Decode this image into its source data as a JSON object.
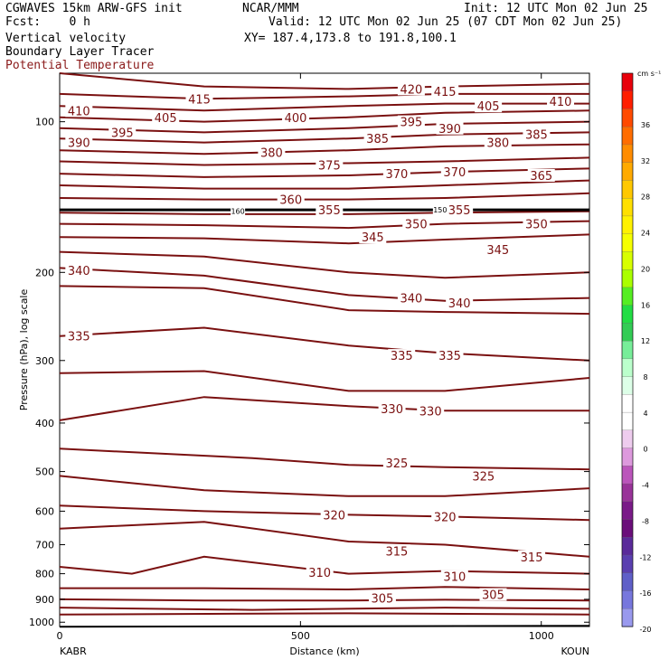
{
  "header": {
    "model": "CGWAVES 15km ARW-GFS init",
    "org": "NCAR/MMM",
    "init": "Init: 12 UTC Mon 02 Jun 25",
    "fcst": "Fcst:    0 h",
    "valid": "Valid: 12 UTC Mon 02 Jun 25 (07 CDT Mon 02 Jun 25)",
    "xy": "XY= 187.4,173.8 to 191.8,100.1",
    "fields": [
      "Vertical velocity",
      "Boundary Layer Tracer",
      "Potential Temperature"
    ]
  },
  "chart_data": {
    "type": "line",
    "title": "Vertical velocity / Boundary Layer Tracer / Potential Temperature",
    "xlabel": "Distance (km)",
    "ylabel": "Pressure (hPa), log scale",
    "x_ticks": [
      0,
      500,
      1000
    ],
    "xlim": [
      0,
      1100
    ],
    "y_ticks": [
      100,
      200,
      300,
      400,
      500,
      600,
      700,
      800,
      900,
      1000
    ],
    "y_scale": "log",
    "ylim": [
      1020,
      80
    ],
    "x_end_labels": [
      "KABR",
      "KOUN"
    ],
    "contour_field": "Potential Temperature",
    "contour_color": "#7a1010",
    "contour_labels": [
      {
        "text": "420",
        "x": 730,
        "p": 86
      },
      {
        "text": "415",
        "x": 290,
        "p": 90
      },
      {
        "text": "415",
        "x": 800,
        "p": 87
      },
      {
        "text": "410",
        "x": 40,
        "p": 95
      },
      {
        "text": "410",
        "x": 1040,
        "p": 91
      },
      {
        "text": "405",
        "x": 220,
        "p": 98
      },
      {
        "text": "405",
        "x": 890,
        "p": 93
      },
      {
        "text": "400",
        "x": 490,
        "p": 98
      },
      {
        "text": "395",
        "x": 130,
        "p": 105
      },
      {
        "text": "395",
        "x": 730,
        "p": 100
      },
      {
        "text": "390",
        "x": 40,
        "p": 110
      },
      {
        "text": "390",
        "x": 810,
        "p": 103
      },
      {
        "text": "385",
        "x": 660,
        "p": 108
      },
      {
        "text": "385",
        "x": 990,
        "p": 106
      },
      {
        "text": "380",
        "x": 440,
        "p": 115
      },
      {
        "text": "380",
        "x": 910,
        "p": 110
      },
      {
        "text": "375",
        "x": 560,
        "p": 122
      },
      {
        "text": "370",
        "x": 700,
        "p": 127
      },
      {
        "text": "370",
        "x": 820,
        "p": 126
      },
      {
        "text": "365",
        "x": 1000,
        "p": 128
      },
      {
        "text": "360",
        "x": 480,
        "p": 143
      },
      {
        "text": "355",
        "x": 560,
        "p": 150
      },
      {
        "text": "355",
        "x": 830,
        "p": 150
      },
      {
        "text": "350",
        "x": 740,
        "p": 160
      },
      {
        "text": "350",
        "x": 990,
        "p": 160
      },
      {
        "text": "345",
        "x": 650,
        "p": 170
      },
      {
        "text": "345",
        "x": 910,
        "p": 180
      },
      {
        "text": "340",
        "x": 40,
        "p": 198
      },
      {
        "text": "340",
        "x": 730,
        "p": 225
      },
      {
        "text": "340",
        "x": 830,
        "p": 230
      },
      {
        "text": "335",
        "x": 40,
        "p": 268
      },
      {
        "text": "335",
        "x": 710,
        "p": 293
      },
      {
        "text": "335",
        "x": 810,
        "p": 293
      },
      {
        "text": "330",
        "x": 690,
        "p": 374
      },
      {
        "text": "330",
        "x": 770,
        "p": 378
      },
      {
        "text": "325",
        "x": 700,
        "p": 480
      },
      {
        "text": "325",
        "x": 880,
        "p": 510
      },
      {
        "text": "320",
        "x": 570,
        "p": 610
      },
      {
        "text": "320",
        "x": 800,
        "p": 615
      },
      {
        "text": "315",
        "x": 700,
        "p": 720
      },
      {
        "text": "315",
        "x": 980,
        "p": 740
      },
      {
        "text": "310",
        "x": 540,
        "p": 795
      },
      {
        "text": "310",
        "x": 820,
        "p": 810
      },
      {
        "text": "305",
        "x": 670,
        "p": 895
      },
      {
        "text": "305",
        "x": 900,
        "p": 880
      }
    ],
    "tracer_labels": [
      {
        "text": "160",
        "x": 370,
        "p": 151
      },
      {
        "text": "150",
        "x": 790,
        "p": 150
      }
    ],
    "contours": [
      [
        [
          0,
          80
        ],
        [
          300,
          85
        ],
        [
          600,
          86
        ],
        [
          800,
          85
        ],
        [
          1100,
          84
        ]
      ],
      [
        [
          0,
          88
        ],
        [
          300,
          90
        ],
        [
          600,
          89
        ],
        [
          800,
          88
        ],
        [
          1100,
          88
        ]
      ],
      [
        [
          0,
          93
        ],
        [
          300,
          95
        ],
        [
          600,
          93
        ],
        [
          800,
          92
        ],
        [
          1100,
          92
        ]
      ],
      [
        [
          0,
          98
        ],
        [
          300,
          100
        ],
        [
          600,
          98
        ],
        [
          800,
          96
        ],
        [
          1100,
          95
        ]
      ],
      [
        [
          0,
          103
        ],
        [
          300,
          105
        ],
        [
          600,
          103
        ],
        [
          800,
          101
        ],
        [
          1100,
          100
        ]
      ],
      [
        [
          0,
          108
        ],
        [
          300,
          110
        ],
        [
          600,
          108
        ],
        [
          800,
          106
        ],
        [
          1100,
          105
        ]
      ],
      [
        [
          0,
          114
        ],
        [
          300,
          116
        ],
        [
          600,
          114
        ],
        [
          800,
          112
        ],
        [
          1100,
          111
        ]
      ],
      [
        [
          0,
          120
        ],
        [
          300,
          122
        ],
        [
          600,
          121
        ],
        [
          800,
          120
        ],
        [
          1100,
          118
        ]
      ],
      [
        [
          0,
          127
        ],
        [
          300,
          129
        ],
        [
          600,
          128
        ],
        [
          800,
          126
        ],
        [
          1100,
          124
        ]
      ],
      [
        [
          0,
          134
        ],
        [
          300,
          136
        ],
        [
          600,
          136
        ],
        [
          800,
          134
        ],
        [
          1100,
          131
        ]
      ],
      [
        [
          0,
          142
        ],
        [
          300,
          143
        ],
        [
          600,
          143
        ],
        [
          800,
          142
        ],
        [
          1100,
          139
        ]
      ],
      [
        [
          0,
          152
        ],
        [
          300,
          153
        ],
        [
          600,
          153
        ],
        [
          800,
          152
        ],
        [
          1100,
          151
        ]
      ],
      [
        [
          0,
          160
        ],
        [
          300,
          161
        ],
        [
          600,
          163
        ],
        [
          800,
          160
        ],
        [
          1100,
          158
        ]
      ],
      [
        [
          0,
          170
        ],
        [
          300,
          171
        ],
        [
          600,
          175
        ],
        [
          800,
          172
        ],
        [
          1100,
          168
        ]
      ],
      [
        [
          0,
          182
        ],
        [
          300,
          186
        ],
        [
          600,
          200
        ],
        [
          800,
          205
        ],
        [
          1100,
          200
        ]
      ],
      [
        [
          0,
          196
        ],
        [
          300,
          203
        ],
        [
          600,
          222
        ],
        [
          800,
          228
        ],
        [
          1100,
          225
        ]
      ],
      [
        [
          0,
          213
        ],
        [
          300,
          215
        ],
        [
          600,
          238
        ],
        [
          800,
          240
        ],
        [
          1100,
          242
        ]
      ],
      [
        [
          0,
          268
        ],
        [
          300,
          258
        ],
        [
          600,
          280
        ],
        [
          800,
          290
        ],
        [
          1100,
          300
        ]
      ],
      [
        [
          0,
          318
        ],
        [
          300,
          315
        ],
        [
          600,
          345
        ],
        [
          800,
          345
        ],
        [
          1100,
          325
        ]
      ],
      [
        [
          0,
          395
        ],
        [
          300,
          355
        ],
        [
          600,
          370
        ],
        [
          800,
          378
        ],
        [
          1100,
          378
        ]
      ],
      [
        [
          0,
          450
        ],
        [
          400,
          470
        ],
        [
          600,
          485
        ],
        [
          800,
          490
        ],
        [
          1100,
          495
        ]
      ],
      [
        [
          0,
          510
        ],
        [
          300,
          545
        ],
        [
          600,
          560
        ],
        [
          800,
          560
        ],
        [
          1100,
          540
        ]
      ],
      [
        [
          0,
          585
        ],
        [
          300,
          600
        ],
        [
          600,
          610
        ],
        [
          800,
          615
        ],
        [
          1100,
          625
        ]
      ],
      [
        [
          0,
          650
        ],
        [
          300,
          630
        ],
        [
          600,
          690
        ],
        [
          800,
          700
        ],
        [
          1100,
          740
        ]
      ],
      [
        [
          0,
          775
        ],
        [
          150,
          800
        ],
        [
          300,
          740
        ],
        [
          600,
          800
        ],
        [
          800,
          790
        ],
        [
          1100,
          800
        ]
      ],
      [
        [
          0,
          855
        ],
        [
          300,
          855
        ],
        [
          600,
          860
        ],
        [
          800,
          850
        ],
        [
          1100,
          860
        ]
      ],
      [
        [
          0,
          900
        ],
        [
          300,
          905
        ],
        [
          600,
          905
        ],
        [
          800,
          902
        ],
        [
          1100,
          905
        ]
      ],
      [
        [
          0,
          935
        ],
        [
          400,
          945
        ],
        [
          800,
          935
        ],
        [
          1100,
          940
        ]
      ],
      [
        [
          0,
          965
        ],
        [
          600,
          960
        ],
        [
          1100,
          965
        ]
      ]
    ],
    "tracer_line": [
      [
        0,
        150
      ],
      [
        1100,
        150
      ]
    ]
  },
  "colorbar": {
    "unit": "cm s⁻¹",
    "labels": [
      "36",
      "32",
      "28",
      "24",
      "20",
      "16",
      "12",
      "8",
      "4",
      "0",
      "-4",
      "-8",
      "-12",
      "-16",
      "-20"
    ],
    "colors": [
      "#e8000b",
      "#ff1e00",
      "#ff4a00",
      "#ff6d00",
      "#ff8c00",
      "#ffaa00",
      "#ffc800",
      "#ffe000",
      "#fff200",
      "#f6ff00",
      "#d8ff00",
      "#aaff00",
      "#55ee22",
      "#22dd44",
      "#33cc55",
      "#77ee99",
      "#bbffcc",
      "#ddffe8",
      "#ffffff",
      "#ffffff",
      "#eeccee",
      "#dd99dd",
      "#bb55bb",
      "#993399",
      "#7a1a88",
      "#6a0d7a",
      "#5a2a9a",
      "#5a3fb0",
      "#5f5fc8",
      "#7777dd",
      "#9999ee"
    ]
  }
}
